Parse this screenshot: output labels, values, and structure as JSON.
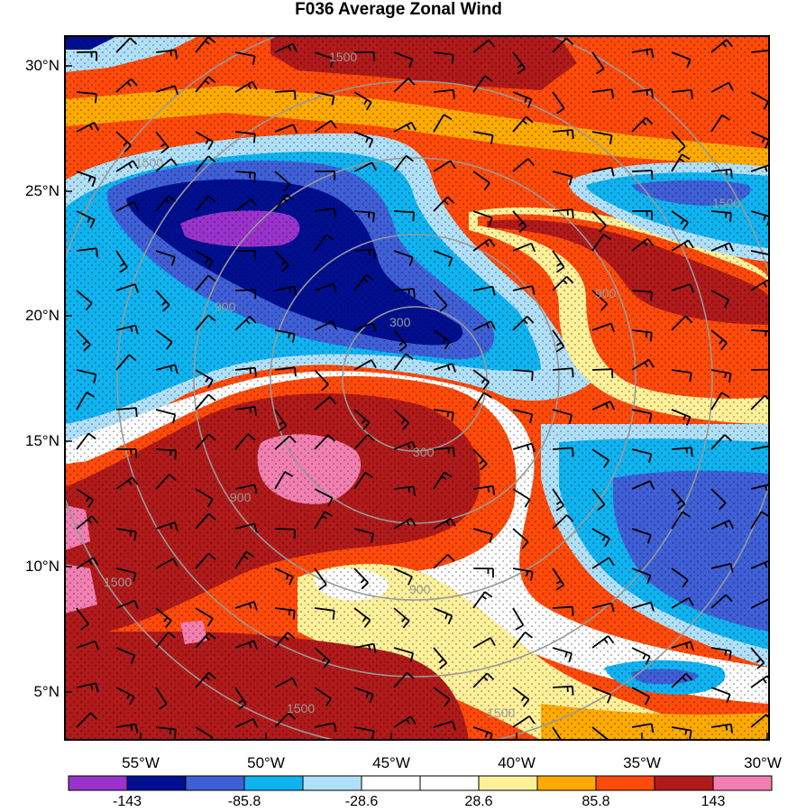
{
  "title": "F036 Average Zonal Wind",
  "latitude_labels": [
    "30°N",
    "25°N",
    "20°N",
    "15°N",
    "10°N",
    "5°N"
  ],
  "longitude_labels": [
    "55°W",
    "50°W",
    "45°W",
    "40°W",
    "35°W",
    "30°W"
  ],
  "colorbar": {
    "labels": [
      "-143",
      "-85.8",
      "-28.6",
      "28.6",
      "85.8",
      "143"
    ],
    "colors": [
      "#9933cc",
      "#000f8f",
      "#3f5fd6",
      "#0fb3f0",
      "#b0e0f8",
      "#ffffff",
      "#ffffff",
      "#fff09a",
      "#ffaa00",
      "#ff4a0a",
      "#b01a1a",
      "#f27fb1"
    ]
  },
  "contour_labels": [
    "1500",
    "1500",
    "1500",
    "900",
    "300",
    "300",
    "900",
    "900",
    "1500",
    "1500",
    "1500",
    "900"
  ],
  "contour_color": "#999999"
}
